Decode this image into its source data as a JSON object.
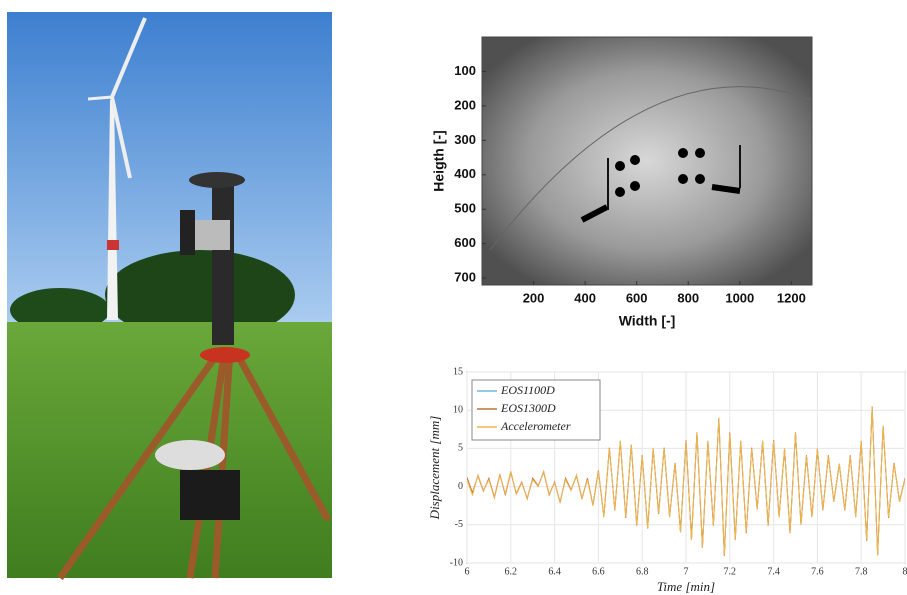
{
  "chart_data": [
    {
      "type": "image",
      "xlabel": "Width [-]",
      "ylabel": "Heigth [-]",
      "xlim": [
        0,
        1280
      ],
      "xticks": [
        200,
        400,
        600,
        800,
        1000,
        1200
      ],
      "ylim": [
        720,
        0
      ],
      "yticks": [
        100,
        200,
        300,
        400,
        500,
        600,
        700
      ]
    },
    {
      "type": "line",
      "xlabel": "Time [min]",
      "ylabel": "Displacement [mm]",
      "grid": true,
      "legend": "upper left",
      "xlim": [
        6,
        8
      ],
      "xticks": [
        6,
        6.2,
        6.4,
        6.6,
        6.8,
        7,
        7.2,
        7.4,
        7.6,
        7.8,
        8
      ],
      "ylim": [
        -10,
        15
      ],
      "yticks": [
        -10,
        -5,
        0,
        5,
        10,
        15
      ],
      "x": [
        6,
        6.025,
        6.05,
        6.075,
        6.1,
        6.125,
        6.15,
        6.175,
        6.2,
        6.225,
        6.25,
        6.275,
        6.3,
        6.325,
        6.35,
        6.375,
        6.4,
        6.425,
        6.45,
        6.475,
        6.5,
        6.525,
        6.55,
        6.575,
        6.6,
        6.625,
        6.65,
        6.675,
        6.7,
        6.725,
        6.75,
        6.775,
        6.8,
        6.825,
        6.85,
        6.875,
        6.9,
        6.925,
        6.95,
        6.975,
        7,
        7.025,
        7.05,
        7.075,
        7.1,
        7.125,
        7.15,
        7.175,
        7.2,
        7.225,
        7.25,
        7.275,
        7.3,
        7.325,
        7.35,
        7.375,
        7.4,
        7.425,
        7.45,
        7.475,
        7.5,
        7.525,
        7.55,
        7.575,
        7.6,
        7.625,
        7.65,
        7.675,
        7.7,
        7.725,
        7.75,
        7.775,
        7.8,
        7.825,
        7.85,
        7.875,
        7.9,
        7.925,
        7.95,
        7.975,
        8
      ],
      "series": [
        {
          "name": "EOS1100D",
          "color": "#6fb7dc",
          "values": [
            1,
            -1,
            1.5,
            -0.5,
            1,
            -1.5,
            1.5,
            -1,
            2,
            -1,
            0.5,
            -1.5,
            1,
            0,
            2,
            -1,
            0.5,
            -2,
            1,
            -0.5,
            1.5,
            -1.5,
            1,
            -2.5,
            2,
            -4,
            5,
            -3,
            6,
            -4,
            5.5,
            -5,
            4,
            -5.5,
            5,
            -3.5,
            5,
            -4,
            3,
            -6,
            6,
            -7,
            7,
            -8,
            6,
            -5,
            9,
            -9,
            7,
            -7,
            6,
            -6,
            5,
            -3,
            6,
            -5,
            6,
            -4,
            5,
            -6,
            7,
            -5,
            4,
            -4,
            5,
            -3,
            4,
            -2,
            3,
            -3,
            4,
            -4,
            6,
            -7,
            10.5,
            -9,
            8,
            -4,
            3,
            -2,
            1
          ]
        },
        {
          "name": "EOS1300D",
          "color": "#c0703a",
          "values": [
            1.2,
            -0.8,
            1.4,
            -0.6,
            1.1,
            -1.4,
            1.6,
            -1.1,
            1.9,
            -0.9,
            0.6,
            -1.6,
            1.1,
            0.1,
            1.9,
            -1.1,
            0.6,
            -2.1,
            1.1,
            -0.4,
            1.4,
            -1.6,
            1.1,
            -2.4,
            2.1,
            -3.9,
            5.1,
            -3.1,
            5.9,
            -4.1,
            5.4,
            -5.1,
            4.1,
            -5.4,
            4.9,
            -3.6,
            5.1,
            -3.9,
            3.1,
            -5.9,
            6.1,
            -6.9,
            7.1,
            -7.9,
            5.9,
            -5.1,
            8.9,
            -9.1,
            7.1,
            -6.9,
            5.9,
            -6.1,
            5.1,
            -2.9,
            5.9,
            -5.1,
            6.1,
            -3.9,
            4.9,
            -6.1,
            7.1,
            -4.9,
            4.1,
            -3.9,
            4.9,
            -3.1,
            4.1,
            -1.9,
            2.9,
            -3.1,
            4.1,
            -3.9,
            5.9,
            -7.1,
            10.4,
            -8.9,
            7.9,
            -4.1,
            3.1,
            -1.9,
            1.1
          ]
        },
        {
          "name": "Accelerometer",
          "color": "#f2b54a",
          "values": [
            0.9,
            -1.1,
            1.5,
            -0.5,
            0.9,
            -1.5,
            1.5,
            -0.9,
            2,
            -1,
            0.5,
            -1.5,
            0.9,
            0,
            2,
            -1,
            0.5,
            -2,
            0.9,
            -0.5,
            1.5,
            -1.5,
            0.9,
            -2.5,
            2,
            -4,
            5,
            -3,
            6,
            -4,
            5.5,
            -5,
            4,
            -5.5,
            5,
            -3.5,
            5,
            -4,
            3,
            -6,
            6,
            -7,
            7,
            -8,
            6,
            -5,
            9,
            -9,
            7,
            -7,
            6,
            -6,
            5,
            -3,
            6,
            -5,
            6,
            -4,
            5,
            -6,
            7,
            -5,
            4,
            -4,
            5,
            -3,
            4,
            -2,
            3,
            -3,
            4,
            -4,
            6,
            -7,
            10.5,
            -9,
            8,
            -4,
            3,
            -2,
            1
          ]
        }
      ]
    }
  ]
}
